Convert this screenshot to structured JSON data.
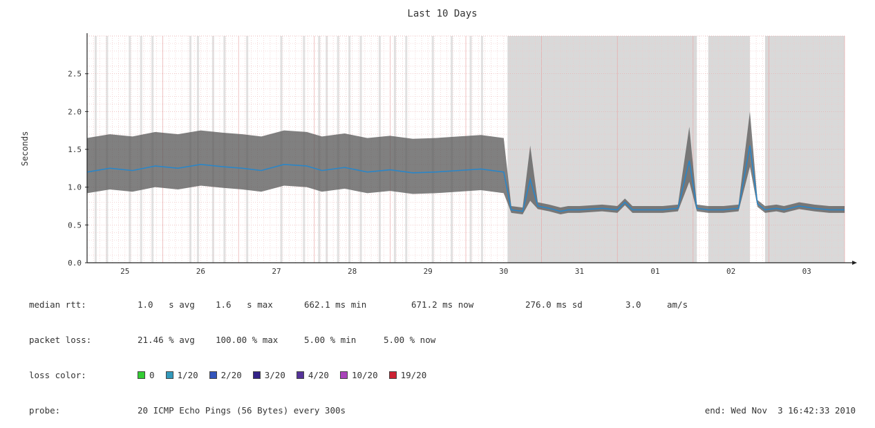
{
  "chart_data": {
    "type": "line",
    "title": "Last 10 Days",
    "xlabel": "",
    "ylabel": "Seconds",
    "ylim": [
      0,
      3.0
    ],
    "yticks": [
      "0.0",
      "0.5",
      "1.0",
      "1.5",
      "2.0",
      "2.5"
    ],
    "yticks_values": [
      0,
      0.5,
      1.0,
      1.5,
      2.0,
      2.5
    ],
    "xticks": [
      "25",
      "26",
      "27",
      "28",
      "29",
      "30",
      "31",
      "01",
      "02",
      "03"
    ],
    "xticks_values": [
      0.5,
      1.5,
      2.5,
      3.5,
      4.5,
      5.5,
      6.5,
      7.5,
      8.5,
      9.5
    ],
    "xlim": [
      0,
      10
    ],
    "grid": true,
    "series": [
      {
        "name": "median rtt",
        "x": [
          0.0,
          0.3,
          0.6,
          0.9,
          1.2,
          1.5,
          1.8,
          2.05,
          2.3,
          2.6,
          2.9,
          3.1,
          3.4,
          3.7,
          4.0,
          4.3,
          4.6,
          4.9,
          5.2,
          5.5,
          5.6,
          5.75,
          5.85,
          5.95,
          6.1,
          6.25,
          6.35,
          6.5,
          6.8,
          7.0,
          7.1,
          7.2,
          7.4,
          7.6,
          7.8,
          7.95,
          8.05,
          8.2,
          8.4,
          8.6,
          8.75,
          8.85,
          8.95,
          9.1,
          9.2,
          9.4,
          9.6,
          9.8,
          10.0
        ],
        "y": [
          1.2,
          1.25,
          1.22,
          1.28,
          1.25,
          1.3,
          1.27,
          1.25,
          1.22,
          1.3,
          1.28,
          1.22,
          1.26,
          1.2,
          1.23,
          1.19,
          1.2,
          1.22,
          1.24,
          1.2,
          0.7,
          0.68,
          1.1,
          0.75,
          0.72,
          0.68,
          0.7,
          0.7,
          0.72,
          0.7,
          0.8,
          0.7,
          0.7,
          0.7,
          0.72,
          1.35,
          0.72,
          0.7,
          0.7,
          0.72,
          1.55,
          0.78,
          0.7,
          0.72,
          0.7,
          0.75,
          0.72,
          0.7,
          0.7
        ]
      }
    ],
    "loss_shaded_ranges": [
      [
        5.55,
        8.05
      ],
      [
        8.2,
        8.75
      ],
      [
        8.95,
        10.0
      ]
    ],
    "spikes_x": [
      0.1,
      0.25,
      0.55,
      0.7,
      0.85,
      1.35,
      1.45,
      1.65,
      1.8,
      2.1,
      2.55,
      2.85,
      3.05,
      3.15,
      3.3,
      3.45,
      3.6,
      3.85,
      4.05,
      4.2,
      4.55,
      4.8,
      5.05,
      5.2
    ]
  },
  "stats": {
    "median_rtt": {
      "label": "median rtt:",
      "cells": [
        "1.0   s avg",
        "1.6   s max",
        "662.1 ms min",
        "671.2 ms now",
        "276.0 ms sd",
        "3.0",
        "am/s"
      ]
    },
    "packet_loss": {
      "label": "packet loss:",
      "cells": [
        "21.46 % avg",
        "100.00 % max",
        "5.00 % min",
        "5.00 % now"
      ]
    },
    "loss_color": {
      "label": "loss color:",
      "items": [
        {
          "text": "0",
          "color": "#33cc33"
        },
        {
          "text": "1/20",
          "color": "#3399bb"
        },
        {
          "text": "2/20",
          "color": "#3355bb"
        },
        {
          "text": "3/20",
          "color": "#332288"
        },
        {
          "text": "4/20",
          "color": "#553399"
        },
        {
          "text": "10/20",
          "color": "#aa44bb"
        },
        {
          "text": "19/20",
          "color": "#cc2233"
        }
      ]
    },
    "probe": {
      "label": "probe:",
      "value": "20 ICMP Echo Pings (56 Bytes) every 300s",
      "end": "end: Wed Nov  3 16:42:33 2010"
    }
  },
  "colors": {
    "grid": "#f0c8c8",
    "grid_major": "#e8a8a8",
    "shade": "#d9d9d9",
    "band": "#555555",
    "low_line": "#2a86c8",
    "axis": "#222222"
  }
}
